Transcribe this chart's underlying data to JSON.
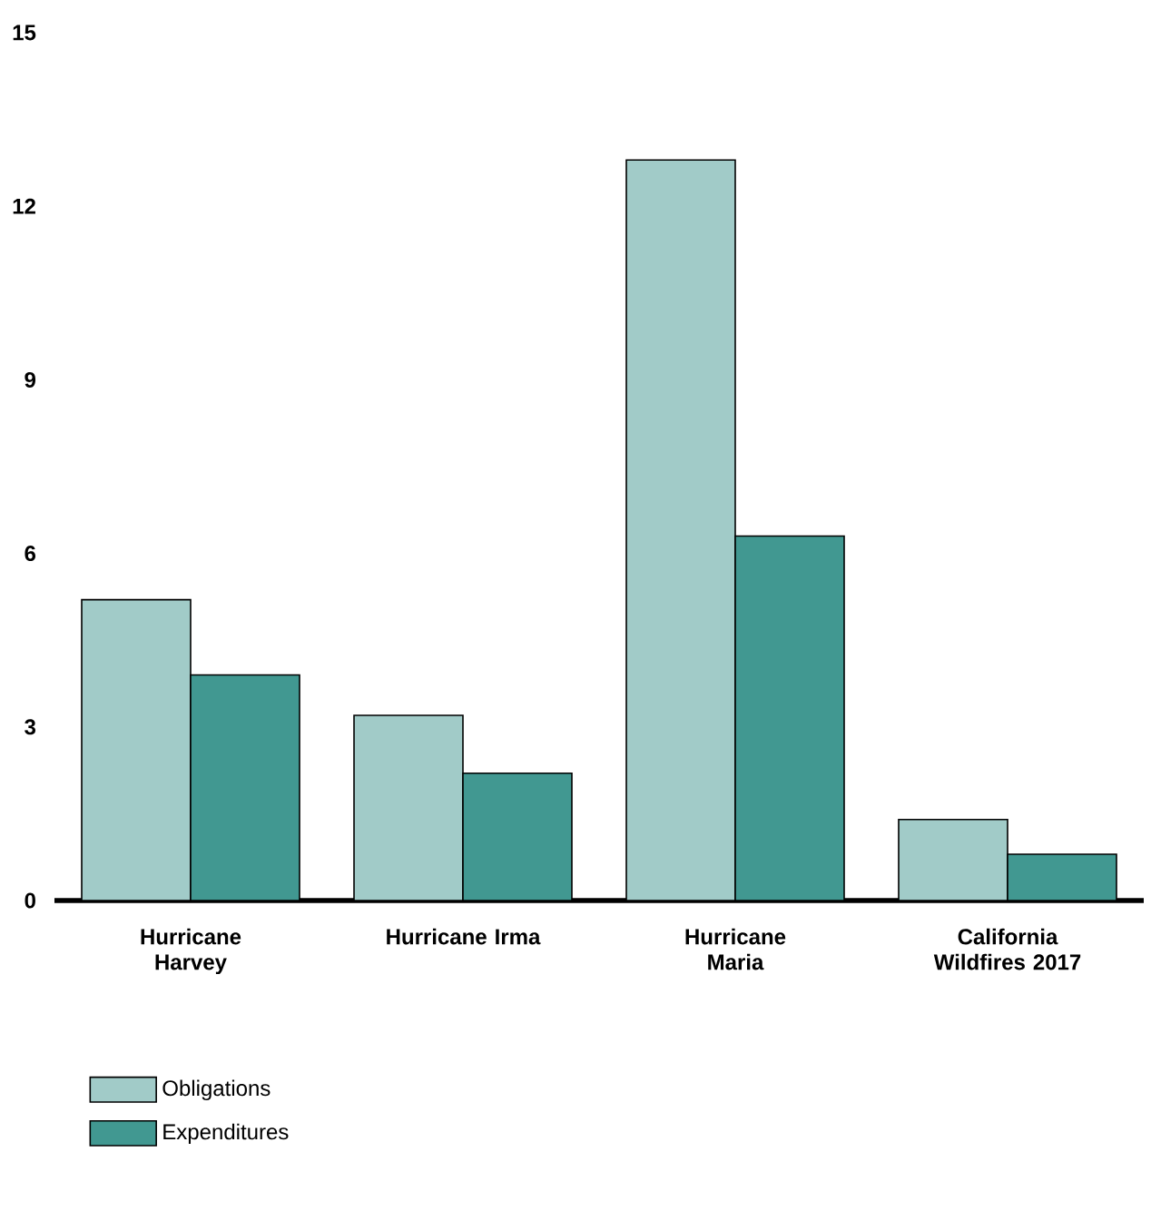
{
  "chart_data": {
    "type": "bar",
    "categories": [
      "Hurricane Harvey",
      "Hurricane Irma",
      "Hurricane Maria",
      "California Wildfires 2017"
    ],
    "series": [
      {
        "name": "Obligations",
        "color": "#a1cbc8",
        "values": [
          5.2,
          3.2,
          12.8,
          1.4
        ]
      },
      {
        "name": "Expenditures",
        "color": "#419891",
        "values": [
          3.9,
          2.2,
          6.3,
          0.8
        ]
      }
    ],
    "ylim": [
      0,
      15
    ],
    "yticks": [
      0,
      3,
      6,
      9,
      12,
      15
    ],
    "legend": "bottom left"
  }
}
